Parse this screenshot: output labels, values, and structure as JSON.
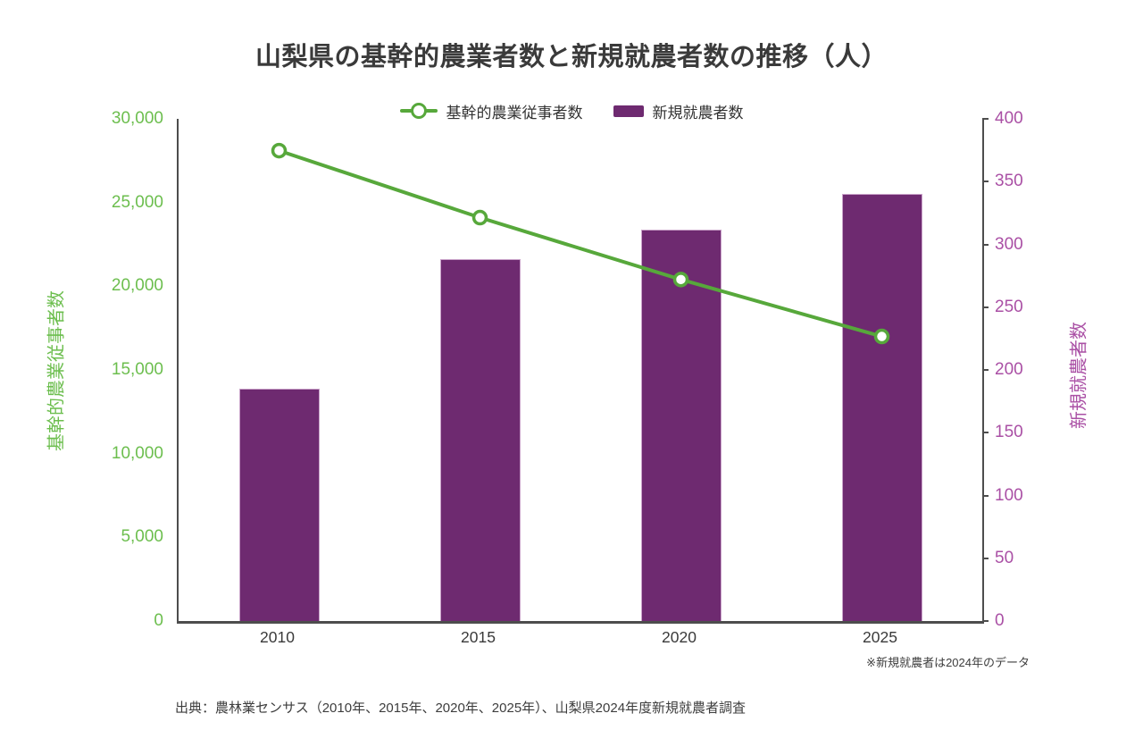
{
  "title": "山梨県の基幹的農業者数と新規就農者数の推移（人）",
  "legend": [
    {
      "label": "基幹的農業従事者数",
      "marker": "line-circle-marker",
      "color": "#57a83b"
    },
    {
      "label": "新規就農者数",
      "marker": "bar-swatch",
      "color": "#6e2a70"
    }
  ],
  "chart_data": {
    "type": "combo-line-bar",
    "categories": [
      "2010",
      "2015",
      "2020",
      "2025"
    ],
    "series": [
      {
        "name": "基幹的農業従事者数",
        "type": "line",
        "axis": "left",
        "color": "#57a83b",
        "marker": "open-circle",
        "values": [
          28100,
          24100,
          20400,
          17000
        ]
      },
      {
        "name": "新規就農者数",
        "type": "bar",
        "axis": "right",
        "color": "#6e2a70",
        "values": [
          185,
          288,
          312,
          340
        ]
      }
    ],
    "left_axis": {
      "label": "基幹的農業従事者数",
      "min": 0,
      "max": 30000,
      "tick_step": 5000,
      "tick_labels": [
        "0",
        "5,000",
        "10,000",
        "15,000",
        "20,000",
        "25,000",
        "30,000"
      ],
      "color": "#6cbe4e"
    },
    "right_axis": {
      "label": "新規就農者数",
      "min": 0,
      "max": 400,
      "tick_step": 50,
      "tick_labels": [
        "0",
        "50",
        "100",
        "150",
        "200",
        "250",
        "300",
        "350",
        "400"
      ],
      "color": "#aa50a5"
    },
    "grid": false,
    "legend_position": "top-center",
    "plot_background": "#ffffff"
  },
  "footnote": "※新規就農者は2024年のデータ",
  "source": "出典：農林業センサス（2010年、2015年、2020年、2025年）、山梨県2024年度新規就農者調査"
}
